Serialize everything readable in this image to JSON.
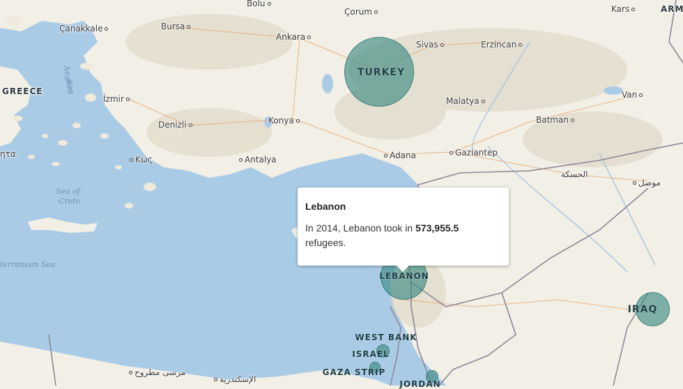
{
  "map": {
    "colors": {
      "sea": "#aacbe6",
      "land": "#f2efe6",
      "relief": "#d9d2bf",
      "border": "#8c8698",
      "bubble": "#35877f",
      "road": "#e8a56b"
    },
    "country_labels": {
      "greece": "GREECE",
      "armenia": "ARMI"
    },
    "sea_labels": {
      "aegean1": "Aegean",
      "aegean2": "Sea",
      "crete1": "Sea of",
      "crete2": "Crete",
      "mediterranean": "terranean Sea"
    },
    "cities": {
      "bolu": "Bolu",
      "corum": "Çorum",
      "kars": "Kars",
      "canakkale": "Çanakkale",
      "bursa": "Bursa",
      "ankara": "Ankara",
      "sivas": "Sivas",
      "erzincan": "Erzincan",
      "izmir": "İzmir",
      "van": "Van",
      "malatya": "Malatya",
      "denizli": "Denizli",
      "konya": "Konya",
      "batman": "Batman",
      "adana": "Adana",
      "gaziantep": "Gaziantep",
      "kos": "Κως",
      "antalya": "Antalya",
      "hasakah": "الحسكة",
      "mosul": "موصل",
      "marsa": "مرسى مطروح",
      "alex": "الإسكندرية",
      "partial": "ητα"
    },
    "bubbles": {
      "turkey": "TURKEY",
      "lebanon": "LEBANON",
      "iraq": "IRAQ",
      "west_bank": "WEST BANK",
      "israel": "ISRAEL",
      "gaza": "GAZA STRIP",
      "jordan": "JORDAN"
    }
  },
  "popup": {
    "title": "Lebanon",
    "text_before": "In 2014, Lebanon took in ",
    "value": "573,955.5",
    "text_after": " refugees."
  }
}
